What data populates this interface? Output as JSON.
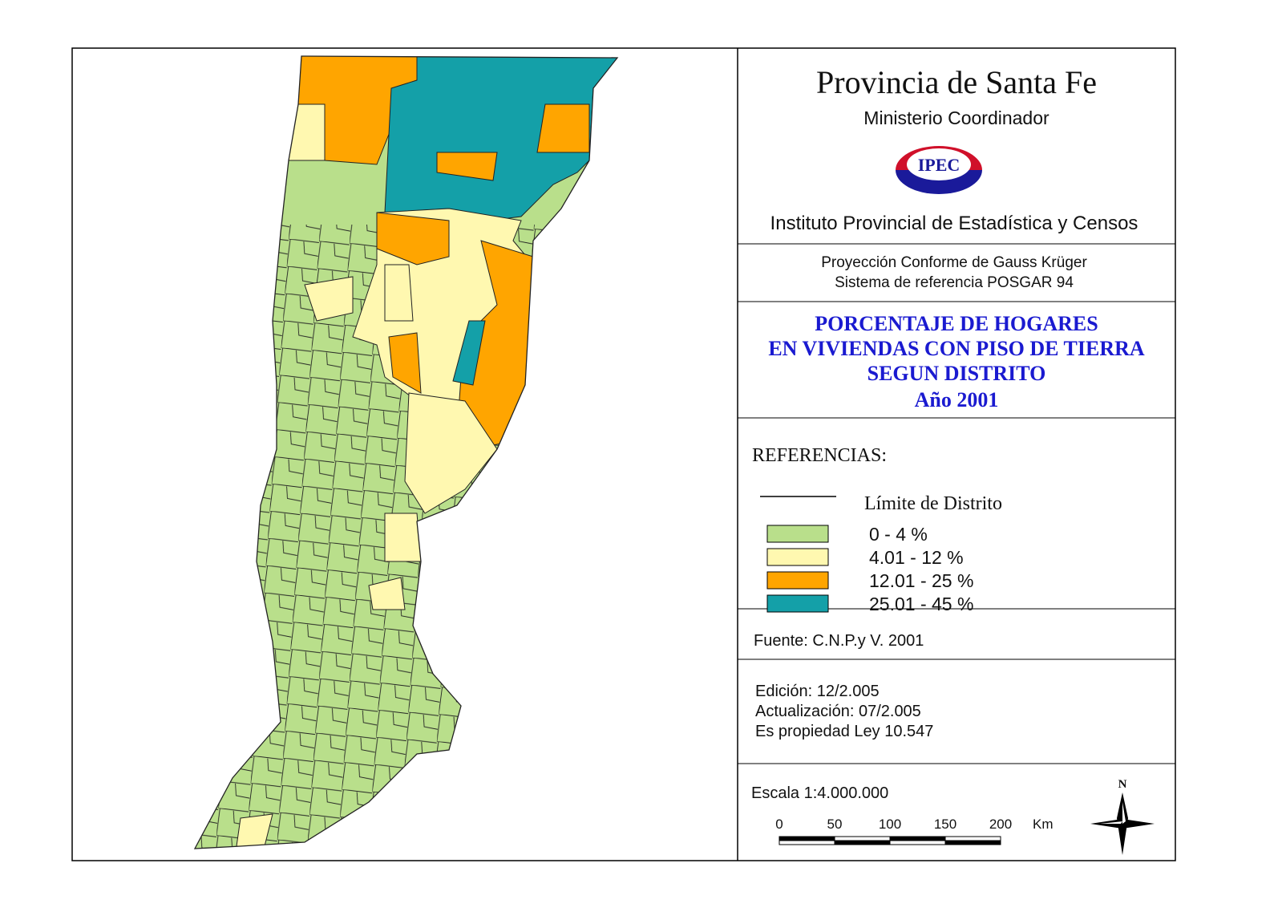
{
  "header": {
    "title": "Provincia de Santa Fe",
    "subtitle": "Ministerio Coordinador",
    "logo": "IPEC",
    "institute": "Instituto Provincial de Estadística y Censos"
  },
  "projection": [
    "Proyección Conforme de Gauss Krüger",
    "Sistema de referencia POSGAR 94"
  ],
  "map_title": [
    "PORCENTAJE DE HOGARES",
    "EN VIVIENDAS CON PISO DE TIERRA",
    "SEGUN DISTRITO",
    "Año 2001"
  ],
  "legend": {
    "heading": "REFERENCIAS:",
    "boundary": "Límite de Distrito",
    "classes": [
      {
        "label": "0 - 4 %",
        "color": "#b9df8b"
      },
      {
        "label": "4.01 - 12 %",
        "color": "#fff8b0"
      },
      {
        "label": "12.01 - 25 %",
        "color": "#ffa500"
      },
      {
        "label": "25.01 - 45 %",
        "color": "#14a0a8"
      }
    ]
  },
  "source": "Fuente:  C.N.P.y V. 2001",
  "edition": [
    "Edición:  12/2.005",
    "Actualización:  07/2.005",
    "Es propiedad Ley 10.547"
  ],
  "scale": {
    "label": "Escala 1:4.000.000",
    "ticks": [
      0,
      50,
      100,
      150,
      200
    ],
    "unit": "Km"
  },
  "north": "N"
}
